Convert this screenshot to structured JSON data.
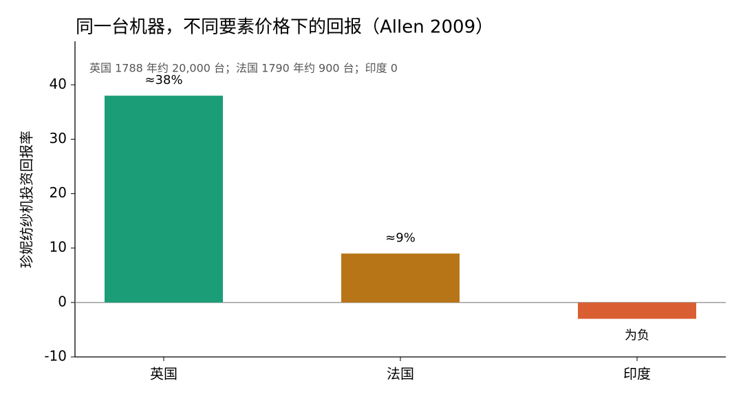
{
  "chart_data": {
    "type": "bar",
    "title": "同一台机器，不同要素价格下的回报（Allen 2009）",
    "annotation": "英国 1788 年约 20,000 台；法国 1790 年约 900 台；印度 0",
    "y_label": "珍妮纺纱机投资回报率",
    "categories": [
      "英国",
      "法国",
      "印度"
    ],
    "values": [
      38,
      9,
      -3
    ],
    "value_labels": [
      "≈38%",
      "≈9%",
      "为负"
    ],
    "colors": [
      "#1b9e77",
      "#b87518",
      "#d95f33"
    ],
    "ylim": [
      -10,
      48
    ],
    "yticks": [
      -10,
      0,
      10,
      20,
      30,
      40
    ],
    "grid": false
  }
}
